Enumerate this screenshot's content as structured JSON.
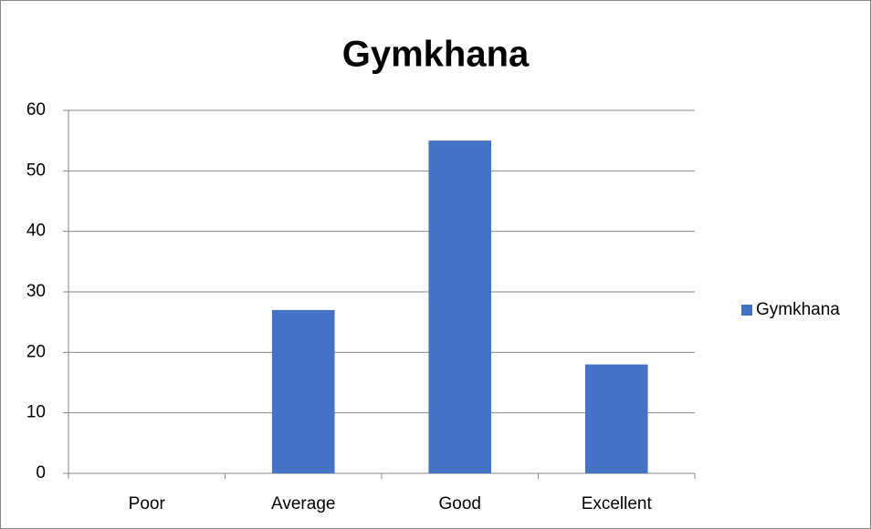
{
  "chart_data": {
    "type": "bar",
    "title": "Gymkhana",
    "categories": [
      "Poor",
      "Average",
      "Good",
      "Excellent"
    ],
    "series": [
      {
        "name": "Gymkhana",
        "color": "#4472c4",
        "values": [
          0,
          27,
          55,
          18
        ]
      }
    ],
    "ylim": [
      0,
      60
    ],
    "yticks": [
      0,
      10,
      20,
      30,
      40,
      50,
      60
    ],
    "grid": true,
    "legend": "right"
  }
}
